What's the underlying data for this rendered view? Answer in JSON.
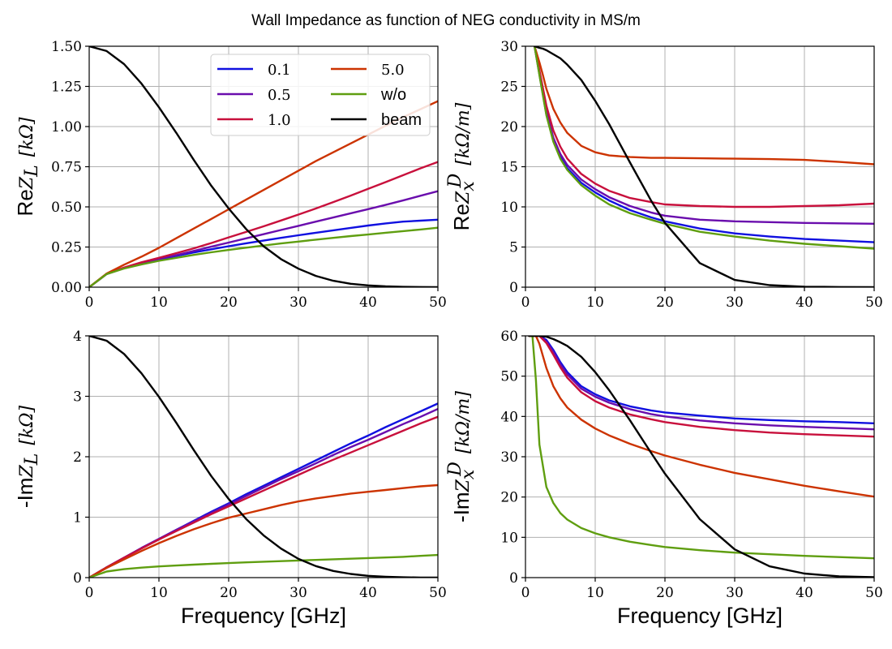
{
  "title": "Wall Impedance as function of NEG conductivity in MS/m",
  "colors": {
    "0.1": "#1010e0",
    "0.5": "#6a0dad",
    "1.0": "#c8103c",
    "5.0": "#cc3300",
    "w/o": "#5f9e10",
    "beam": "#000000"
  },
  "legend": {
    "placement": "upper center of top-left panel, 2 columns",
    "entries": [
      "0.1",
      "0.5",
      "1.0",
      "5.0",
      "w/o",
      "beam"
    ]
  },
  "chart_data": [
    {
      "type": "line",
      "panel": "top-left",
      "ylabel_prefix": "Re",
      "ylabel_math": "Z_L [kΩ]",
      "xlabel": "",
      "xlim": [
        0,
        50
      ],
      "ylim": [
        0,
        1.5
      ],
      "xticks": [
        "0",
        "10",
        "20",
        "30",
        "40",
        "50"
      ],
      "yticks": [
        "0.00",
        "0.25",
        "0.50",
        "0.75",
        "1.00",
        "1.25",
        "1.50"
      ],
      "grid": true,
      "x": [
        0,
        2.5,
        5,
        7.5,
        10,
        12.5,
        15,
        17.5,
        20,
        22.5,
        25,
        27.5,
        30,
        32.5,
        35,
        37.5,
        40,
        42.5,
        45,
        47.5,
        50
      ],
      "series": [
        {
          "name": "0.1",
          "values": [
            0.0,
            0.082,
            0.118,
            0.147,
            0.172,
            0.195,
            0.216,
            0.236,
            0.255,
            0.273,
            0.29,
            0.307,
            0.323,
            0.339,
            0.354,
            0.369,
            0.384,
            0.397,
            0.408,
            0.414,
            0.42
          ]
        },
        {
          "name": "0.5",
          "values": [
            0.0,
            0.082,
            0.12,
            0.15,
            0.176,
            0.2,
            0.226,
            0.252,
            0.278,
            0.304,
            0.33,
            0.356,
            0.382,
            0.408,
            0.434,
            0.46,
            0.486,
            0.512,
            0.54,
            0.569,
            0.598
          ]
        },
        {
          "name": "1.0",
          "values": [
            0.0,
            0.083,
            0.122,
            0.155,
            0.183,
            0.212,
            0.242,
            0.275,
            0.31,
            0.344,
            0.379,
            0.415,
            0.452,
            0.49,
            0.53,
            0.57,
            0.612,
            0.654,
            0.697,
            0.74,
            0.78
          ]
        },
        {
          "name": "5.0",
          "values": [
            0.0,
            0.085,
            0.14,
            0.19,
            0.245,
            0.305,
            0.365,
            0.425,
            0.485,
            0.545,
            0.605,
            0.665,
            0.725,
            0.785,
            0.84,
            0.895,
            0.95,
            1.005,
            1.058,
            1.108,
            1.158
          ]
        },
        {
          "name": "w/o",
          "values": [
            0.0,
            0.082,
            0.116,
            0.142,
            0.164,
            0.183,
            0.201,
            0.217,
            0.232,
            0.246,
            0.259,
            0.272,
            0.284,
            0.296,
            0.307,
            0.318,
            0.328,
            0.339,
            0.349,
            0.359,
            0.37
          ]
        },
        {
          "name": "beam",
          "values": [
            1.5,
            1.47,
            1.389,
            1.267,
            1.12,
            0.96,
            0.792,
            0.632,
            0.49,
            0.362,
            0.255,
            0.175,
            0.115,
            0.07,
            0.04,
            0.021,
            0.011,
            0.005,
            0.002,
            0.001,
            0.0
          ]
        }
      ]
    },
    {
      "type": "line",
      "panel": "top-right",
      "ylabel_prefix": "Re",
      "ylabel_math": "Z_x^D [kΩ/m]",
      "xlabel": "",
      "xlim": [
        0,
        50
      ],
      "ylim": [
        0,
        30
      ],
      "xticks": [
        "0",
        "10",
        "20",
        "30",
        "40",
        "50"
      ],
      "yticks": [
        "0",
        "5",
        "10",
        "15",
        "20",
        "25",
        "30"
      ],
      "grid": true,
      "x": [
        1.3,
        2,
        2.5,
        3,
        4,
        5,
        6,
        8,
        10,
        12,
        15,
        18,
        20,
        25,
        30,
        35,
        40,
        45,
        50
      ],
      "series": [
        {
          "name": "0.1",
          "values": [
            30,
            26.5,
            24.0,
            21.5,
            18.2,
            16.2,
            14.8,
            13.0,
            11.8,
            10.8,
            9.6,
            8.7,
            8.2,
            7.3,
            6.7,
            6.3,
            6.0,
            5.8,
            5.6
          ]
        },
        {
          "name": "0.5",
          "values": [
            30,
            26.7,
            24.3,
            21.9,
            18.6,
            16.6,
            15.2,
            13.4,
            12.2,
            11.2,
            10.1,
            9.3,
            8.9,
            8.4,
            8.2,
            8.1,
            8.0,
            7.95,
            7.9
          ]
        },
        {
          "name": "1.0",
          "values": [
            30,
            27.0,
            24.8,
            22.6,
            19.5,
            17.5,
            16.0,
            14.1,
            12.9,
            12.0,
            11.1,
            10.6,
            10.3,
            10.1,
            10.0,
            10.0,
            10.1,
            10.2,
            10.4
          ]
        },
        {
          "name": "5.0",
          "values": [
            30,
            28.0,
            26.4,
            24.7,
            22.2,
            20.5,
            19.2,
            17.6,
            16.8,
            16.4,
            16.2,
            16.1,
            16.1,
            16.05,
            16.0,
            15.95,
            15.85,
            15.6,
            15.3
          ]
        },
        {
          "name": "w/o",
          "values": [
            30,
            26.4,
            23.9,
            21.4,
            18.1,
            16.0,
            14.6,
            12.7,
            11.4,
            10.3,
            9.2,
            8.4,
            7.9,
            6.9,
            6.3,
            5.8,
            5.4,
            5.1,
            4.8
          ]
        },
        {
          "name": "beam",
          "values": [
            30,
            29.8,
            29.7,
            29.5,
            29.0,
            28.5,
            27.7,
            25.8,
            23.2,
            20.3,
            15.5,
            10.8,
            8.0,
            3.0,
            0.9,
            0.25,
            0.06,
            0.02,
            0.0
          ]
        }
      ]
    },
    {
      "type": "line",
      "panel": "bottom-left",
      "ylabel_prefix": "-Im",
      "ylabel_math": "Z_L [kΩ]",
      "xlabel": "Frequency [GHz]",
      "xlim": [
        0,
        50
      ],
      "ylim": [
        0,
        4
      ],
      "xticks": [
        "0",
        "10",
        "20",
        "30",
        "40",
        "50"
      ],
      "yticks": [
        "0",
        "1",
        "2",
        "3",
        "4"
      ],
      "grid": true,
      "x": [
        0,
        2.5,
        5,
        7.5,
        10,
        12.5,
        15,
        17.5,
        20,
        22.5,
        25,
        27.5,
        30,
        32.5,
        35,
        37.5,
        40,
        42.5,
        45,
        47.5,
        50
      ],
      "series": [
        {
          "name": "0.1",
          "values": [
            0.0,
            0.17,
            0.33,
            0.49,
            0.64,
            0.79,
            0.94,
            1.09,
            1.23,
            1.38,
            1.52,
            1.66,
            1.8,
            1.94,
            2.08,
            2.22,
            2.35,
            2.49,
            2.62,
            2.75,
            2.88
          ]
        },
        {
          "name": "0.5",
          "values": [
            0.0,
            0.17,
            0.33,
            0.49,
            0.64,
            0.79,
            0.93,
            1.07,
            1.21,
            1.35,
            1.49,
            1.63,
            1.76,
            1.89,
            2.03,
            2.16,
            2.28,
            2.41,
            2.54,
            2.66,
            2.79
          ]
        },
        {
          "name": "1.0",
          "values": [
            0.0,
            0.17,
            0.33,
            0.48,
            0.63,
            0.77,
            0.91,
            1.05,
            1.18,
            1.31,
            1.44,
            1.57,
            1.7,
            1.83,
            1.95,
            2.07,
            2.19,
            2.31,
            2.43,
            2.55,
            2.66
          ]
        },
        {
          "name": "5.0",
          "values": [
            0.0,
            0.16,
            0.3,
            0.44,
            0.57,
            0.69,
            0.8,
            0.9,
            0.99,
            1.06,
            1.13,
            1.2,
            1.26,
            1.31,
            1.35,
            1.39,
            1.42,
            1.45,
            1.48,
            1.51,
            1.53
          ]
        },
        {
          "name": "w/o",
          "values": [
            0.0,
            0.1,
            0.14,
            0.165,
            0.185,
            0.2,
            0.215,
            0.228,
            0.24,
            0.252,
            0.263,
            0.273,
            0.283,
            0.293,
            0.303,
            0.313,
            0.323,
            0.333,
            0.343,
            0.36,
            0.375
          ]
        },
        {
          "name": "beam",
          "values": [
            4.0,
            3.92,
            3.7,
            3.38,
            2.99,
            2.56,
            2.11,
            1.68,
            1.3,
            0.97,
            0.7,
            0.48,
            0.31,
            0.19,
            0.11,
            0.06,
            0.03,
            0.015,
            0.006,
            0.002,
            0.0
          ]
        }
      ]
    },
    {
      "type": "line",
      "panel": "bottom-right",
      "ylabel_prefix": "-Im",
      "ylabel_math": "Z_x^D [kΩ/m]",
      "xlabel": "Frequency [GHz]",
      "xlim": [
        0,
        50
      ],
      "ylim": [
        0,
        60
      ],
      "xticks": [
        "0",
        "10",
        "20",
        "30",
        "40",
        "50"
      ],
      "yticks": [
        "0",
        "10",
        "20",
        "30",
        "40",
        "50",
        "60"
      ],
      "grid": true,
      "x": [
        0.5,
        1,
        1.5,
        2,
        3,
        4,
        5,
        6,
        8,
        10,
        12,
        15,
        18,
        20,
        25,
        30,
        35,
        40,
        45,
        50
      ],
      "series": [
        {
          "name": "0.1",
          "values": [
            60,
            60,
            60,
            60,
            59.0,
            56.5,
            53.5,
            51.0,
            47.5,
            45.5,
            44.0,
            42.5,
            41.5,
            41.0,
            40.2,
            39.5,
            39.1,
            38.8,
            38.6,
            38.3
          ]
        },
        {
          "name": "0.5",
          "values": [
            60,
            60,
            60,
            60,
            58.6,
            56.0,
            52.9,
            50.4,
            46.9,
            44.9,
            43.4,
            41.8,
            40.6,
            40.0,
            39.0,
            38.3,
            37.8,
            37.4,
            37.1,
            36.8
          ]
        },
        {
          "name": "1.0",
          "values": [
            60,
            60,
            60,
            60,
            58.2,
            55.3,
            52.2,
            49.6,
            46.0,
            43.8,
            42.2,
            40.5,
            39.3,
            38.6,
            37.4,
            36.6,
            36.0,
            35.6,
            35.3,
            35.0
          ]
        },
        {
          "name": "5.0",
          "values": [
            60,
            60,
            60,
            58.0,
            52.0,
            47.5,
            44.5,
            42.2,
            39.2,
            37.0,
            35.3,
            33.2,
            31.4,
            30.3,
            28.0,
            26.0,
            24.4,
            22.8,
            21.4,
            20.1
          ]
        },
        {
          "name": "w/o",
          "values": [
            60,
            60,
            49.0,
            33.0,
            22.5,
            18.5,
            16.0,
            14.4,
            12.3,
            11.0,
            10.0,
            8.9,
            8.1,
            7.6,
            6.8,
            6.2,
            5.8,
            5.4,
            5.1,
            4.8
          ]
        },
        {
          "name": "beam",
          "values": [
            60,
            60,
            60,
            60,
            59.8,
            59.2,
            58.4,
            57.5,
            54.8,
            51.0,
            46.5,
            39.0,
            31.0,
            25.8,
            14.5,
            7.0,
            2.8,
            1.0,
            0.3,
            0.1
          ]
        }
      ]
    }
  ]
}
